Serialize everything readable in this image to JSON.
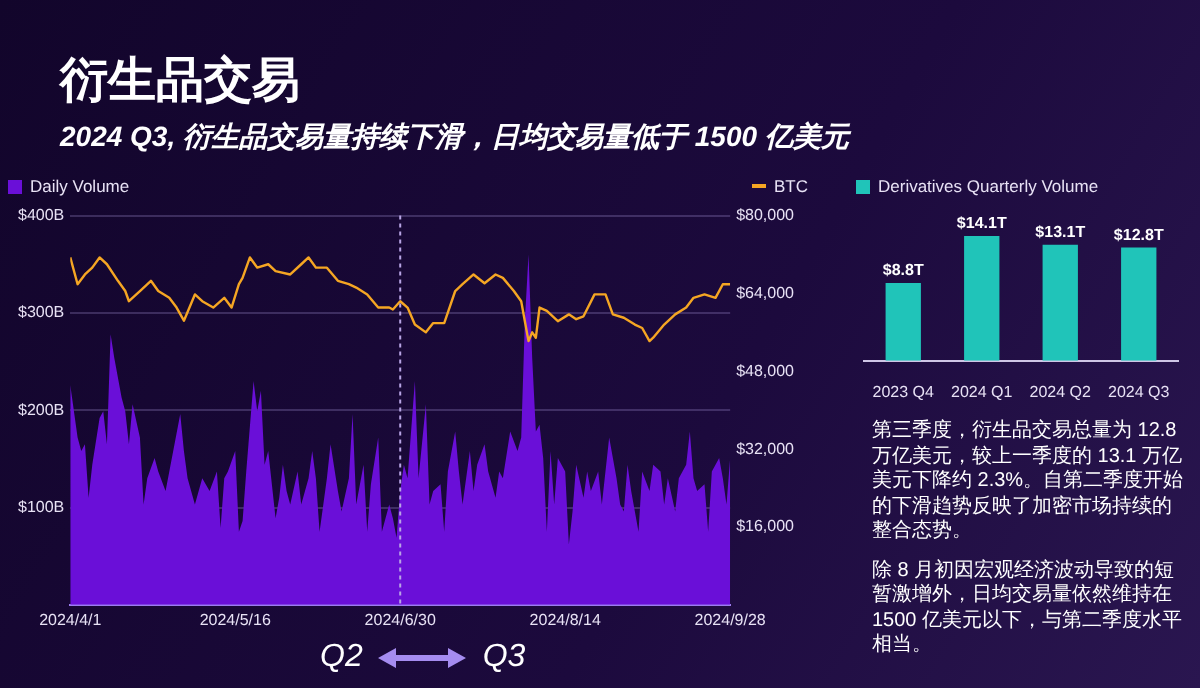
{
  "chart_data": [
    {
      "type": "area",
      "title": "衍生品交易",
      "subtitle": "2024 Q3, 衍生品交易量持续下滑，日均交易量低于 1500 亿美元",
      "annotations": [
        "Q2",
        "Q3"
      ],
      "legend": "top",
      "grid": "y",
      "xlim": [
        "2024-04-01",
        "2024-09-28"
      ],
      "xticks": [
        {
          "value": "2024-04-01",
          "label": "2024/4/1"
        },
        {
          "value": "2024-05-16",
          "label": "2024/5/16"
        },
        {
          "value": "2024-06-30",
          "label": "2024/6/30"
        },
        {
          "value": "2024-08-14",
          "label": "2024/8/14"
        },
        {
          "value": "2024-09-28",
          "label": "2024/9/28"
        }
      ],
      "ylim": [
        0,
        400
      ],
      "yticks": [
        {
          "value": 100,
          "label": "$100B"
        },
        {
          "value": 200,
          "label": "$200B"
        },
        {
          "value": 300,
          "label": "$300B"
        },
        {
          "value": 400,
          "label": "$400B"
        }
      ],
      "y2lim": [
        0,
        80000
      ],
      "y2ticks": [
        {
          "value": 16000,
          "label": "$16,000"
        },
        {
          "value": 32000,
          "label": "$32,000"
        },
        {
          "value": 48000,
          "label": "$48,000"
        },
        {
          "value": 64000,
          "label": "$64,000"
        },
        {
          "value": 80000,
          "label": "$80,000"
        }
      ],
      "ref_lines": [
        {
          "axis": "x",
          "value": "2024-06-30",
          "color": "#b9a5e6",
          "line_style": "dotted"
        }
      ],
      "series": [
        {
          "name": "Daily Volume",
          "type": "area",
          "color": "#6a0fd8",
          "x": [
            "2024-04-01",
            "2024-04-03",
            "2024-04-04",
            "2024-04-05",
            "2024-04-06",
            "2024-04-07",
            "2024-04-09",
            "2024-04-10",
            "2024-04-11",
            "2024-04-12",
            "2024-04-13",
            "2024-04-15",
            "2024-04-16",
            "2024-04-17",
            "2024-04-18",
            "2024-04-20",
            "2024-04-21",
            "2024-04-22",
            "2024-04-24",
            "2024-04-25",
            "2024-04-27",
            "2024-05-01",
            "2024-05-02",
            "2024-05-03",
            "2024-05-05",
            "2024-05-07",
            "2024-05-09",
            "2024-05-11",
            "2024-05-12",
            "2024-05-13",
            "2024-05-14",
            "2024-05-16",
            "2024-05-17",
            "2024-05-18",
            "2024-05-19",
            "2024-05-21",
            "2024-05-22",
            "2024-05-23",
            "2024-05-24",
            "2024-05-25",
            "2024-05-27",
            "2024-05-28",
            "2024-05-29",
            "2024-05-30",
            "2024-05-31",
            "2024-06-02",
            "2024-06-03",
            "2024-06-05",
            "2024-06-06",
            "2024-06-07",
            "2024-06-08",
            "2024-06-10",
            "2024-06-11",
            "2024-06-13",
            "2024-06-14",
            "2024-06-16",
            "2024-06-17",
            "2024-06-18",
            "2024-06-20",
            "2024-06-21",
            "2024-06-22",
            "2024-06-24",
            "2024-06-25",
            "2024-06-27",
            "2024-06-28",
            "2024-06-29",
            "2024-06-30",
            "2024-07-01",
            "2024-07-02",
            "2024-07-04",
            "2024-07-05",
            "2024-07-07",
            "2024-07-08",
            "2024-07-09",
            "2024-07-11",
            "2024-07-12",
            "2024-07-13",
            "2024-07-15",
            "2024-07-16",
            "2024-07-17",
            "2024-07-19",
            "2024-07-20",
            "2024-07-21",
            "2024-07-23",
            "2024-07-24",
            "2024-07-26",
            "2024-07-27",
            "2024-07-28",
            "2024-07-30",
            "2024-08-01",
            "2024-08-02",
            "2024-08-03",
            "2024-08-04",
            "2024-08-05",
            "2024-08-06",
            "2024-08-07",
            "2024-08-08",
            "2024-08-09",
            "2024-08-10",
            "2024-08-11",
            "2024-08-12",
            "2024-08-14",
            "2024-08-15",
            "2024-08-16",
            "2024-08-17",
            "2024-08-19",
            "2024-08-20",
            "2024-08-21",
            "2024-08-23",
            "2024-08-24",
            "2024-08-26",
            "2024-08-28",
            "2024-08-29",
            "2024-08-30",
            "2024-08-31",
            "2024-09-01",
            "2024-09-03",
            "2024-09-04",
            "2024-09-06",
            "2024-09-07",
            "2024-09-09",
            "2024-09-10",
            "2024-09-11",
            "2024-09-13",
            "2024-09-14",
            "2024-09-16",
            "2024-09-17",
            "2024-09-18",
            "2024-09-19",
            "2024-09-21",
            "2024-09-22",
            "2024-09-23",
            "2024-09-25",
            "2024-09-26",
            "2024-09-27",
            "2024-09-28"
          ],
          "values": [
            226,
            172,
            158,
            165,
            110,
            144,
            192,
            199,
            165,
            278,
            254,
            213,
            199,
            165,
            206,
            172,
            103,
            130,
            151,
            137,
            117,
            196,
            158,
            130,
            103,
            130,
            117,
            137,
            79,
            130,
            137,
            158,
            75,
            86,
            137,
            230,
            199,
            220,
            144,
            158,
            89,
            110,
            144,
            117,
            103,
            137,
            103,
            130,
            158,
            130,
            75,
            130,
            165,
            117,
            96,
            130,
            196,
            103,
            144,
            75,
            124,
            172,
            75,
            103,
            89,
            69,
            117,
            144,
            130,
            230,
            130,
            206,
            103,
            117,
            124,
            75,
            137,
            178,
            137,
            103,
            158,
            117,
            144,
            165,
            137,
            110,
            137,
            130,
            178,
            158,
            172,
            292,
            360,
            254,
            178,
            185,
            151,
            75,
            158,
            103,
            151,
            137,
            62,
            96,
            144,
            110,
            137,
            117,
            137,
            103,
            172,
            130,
            103,
            96,
            144,
            117,
            75,
            137,
            117,
            144,
            137,
            103,
            130,
            96,
            130,
            144,
            178,
            130,
            117,
            124,
            75,
            137,
            151,
            130,
            103,
            151
          ]
        },
        {
          "name": "BTC",
          "type": "line",
          "axis": "y2",
          "color": "#f5a623",
          "x": [
            "2024-04-01",
            "2024-04-03",
            "2024-04-05",
            "2024-04-07",
            "2024-04-09",
            "2024-04-11",
            "2024-04-14",
            "2024-04-16",
            "2024-04-17",
            "2024-04-20",
            "2024-04-23",
            "2024-04-25",
            "2024-04-28",
            "2024-04-30",
            "2024-05-02",
            "2024-05-05",
            "2024-05-07",
            "2024-05-10",
            "2024-05-13",
            "2024-05-15",
            "2024-05-17",
            "2024-05-18",
            "2024-05-20",
            "2024-05-22",
            "2024-05-25",
            "2024-05-27",
            "2024-05-31",
            "2024-06-03",
            "2024-06-05",
            "2024-06-07",
            "2024-06-10",
            "2024-06-13",
            "2024-06-16",
            "2024-06-18",
            "2024-06-21",
            "2024-06-24",
            "2024-06-27",
            "2024-06-28",
            "2024-06-30",
            "2024-07-02",
            "2024-07-04",
            "2024-07-07",
            "2024-07-09",
            "2024-07-12",
            "2024-07-15",
            "2024-07-17",
            "2024-07-20",
            "2024-07-23",
            "2024-07-26",
            "2024-07-28",
            "2024-07-31",
            "2024-08-02",
            "2024-08-03",
            "2024-08-04",
            "2024-08-05",
            "2024-08-06",
            "2024-08-07",
            "2024-08-09",
            "2024-08-12",
            "2024-08-15",
            "2024-08-17",
            "2024-08-19",
            "2024-08-22",
            "2024-08-25",
            "2024-08-27",
            "2024-08-30",
            "2024-09-02",
            "2024-09-04",
            "2024-09-06",
            "2024-09-07",
            "2024-09-10",
            "2024-09-13",
            "2024-09-16",
            "2024-09-18",
            "2024-09-21",
            "2024-09-24",
            "2024-09-26",
            "2024-09-28"
          ],
          "values": [
            71400,
            65900,
            67900,
            69300,
            71400,
            70000,
            66600,
            64500,
            62400,
            64500,
            66600,
            64500,
            63100,
            61100,
            58400,
            63800,
            62400,
            61100,
            63100,
            61100,
            65900,
            67200,
            71400,
            69300,
            70000,
            68600,
            67900,
            70000,
            71400,
            69300,
            69300,
            66600,
            65900,
            65200,
            63800,
            61100,
            61100,
            60700,
            62400,
            61100,
            57600,
            56000,
            57900,
            57900,
            64500,
            65900,
            67900,
            66100,
            67900,
            67200,
            64500,
            62400,
            58300,
            54200,
            56000,
            54900,
            61100,
            60400,
            58300,
            59700,
            58700,
            59300,
            63800,
            63800,
            59700,
            59000,
            57600,
            56900,
            54200,
            54900,
            57600,
            59700,
            61100,
            63100,
            63800,
            63100,
            65900,
            65900
          ]
        }
      ]
    },
    {
      "type": "bar",
      "legend": "top left",
      "categories": [
        "2023 Q4",
        "2024 Q1",
        "2024 Q2",
        "2024 Q3"
      ],
      "series": [
        {
          "name": "Derivatives Quarterly Volume",
          "color": "#20c4b9",
          "values": [
            8.8,
            14.1,
            13.1,
            12.8
          ],
          "value_labels": [
            "$8.8T",
            "$14.1T",
            "$13.1T",
            "$12.8T"
          ]
        }
      ],
      "annotations": [
        "第三季度，衍生品交易总量为 12.8 万亿美元，较上一季度的 13.1 万亿美元下降约 2.3%。自第二季度开始的下滑趋势反映了加密市场持续的整合态势。",
        "除 8 月初因宏观经济波动导致的短暂激增外，日均交易量依然维持在 1500 亿美元以下，与第二季度水平相当。"
      ]
    }
  ]
}
